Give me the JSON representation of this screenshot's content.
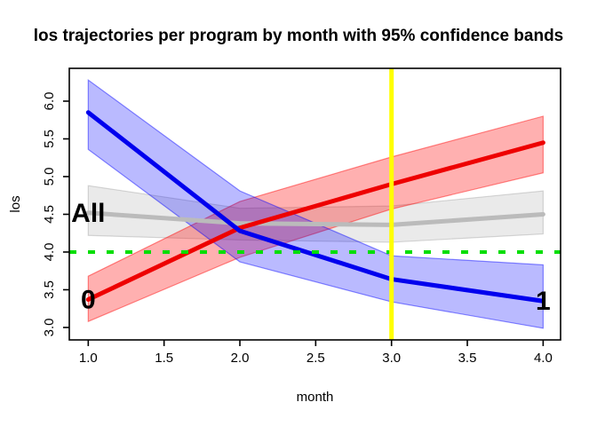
{
  "chart_data": {
    "type": "line",
    "title": "los trajectories per program by month with 95% confidence bands",
    "xlabel": "month",
    "ylabel": "los",
    "x": [
      1,
      2,
      3,
      4
    ],
    "xlim": [
      0.875,
      4.115
    ],
    "ylim": [
      2.835,
      6.435
    ],
    "grid": "off",
    "legend": "none",
    "x_ticks": {
      "values": [
        1.0,
        1.5,
        2.0,
        2.5,
        3.0,
        3.5,
        4.0
      ],
      "labels": [
        "1.0",
        "1.5",
        "2.0",
        "2.5",
        "3.0",
        "3.5",
        "4.0"
      ]
    },
    "y_ticks": {
      "values": [
        3.0,
        3.5,
        4.0,
        4.5,
        5.0,
        5.5,
        6.0
      ],
      "labels": [
        "3.0",
        "3.5",
        "4.0",
        "4.5",
        "5.0",
        "5.5",
        "6.0"
      ]
    },
    "series": [
      {
        "name": "All",
        "label": "All",
        "color": "#BBBBBB",
        "label_color": "#C6C6C6",
        "band_fill": "rgba(128,128,128,0.17)",
        "band_edge": "rgba(128,128,128,0.30)",
        "values": [
          4.52,
          4.38,
          4.36,
          4.5
        ],
        "lower": [
          4.22,
          4.16,
          4.13,
          4.24
        ],
        "upper": [
          4.88,
          4.58,
          4.61,
          4.81
        ],
        "label_x": 1,
        "label_y": 4.52
      },
      {
        "name": "0",
        "label": "0",
        "color": "#EE0000",
        "label_color": "#EE0000",
        "band_fill": "rgba(255,0,0,0.31)",
        "band_edge": "rgba(255,0,0,0.45)",
        "values": [
          3.37,
          4.32,
          4.9,
          5.45
        ],
        "lower": [
          3.08,
          3.93,
          4.57,
          5.05
        ],
        "upper": [
          3.68,
          4.67,
          5.26,
          5.8
        ],
        "label_x": 1,
        "label_y": 3.37
      },
      {
        "name": "1",
        "label": "1",
        "color": "#0000EE",
        "label_color": "#0000EE",
        "band_fill": "rgba(0,0,255,0.27)",
        "band_edge": "rgba(0,0,255,0.45)",
        "values": [
          5.85,
          4.28,
          3.64,
          3.35
        ],
        "lower": [
          5.36,
          3.87,
          3.34,
          2.99
        ],
        "upper": [
          6.28,
          4.81,
          3.95,
          3.83
        ],
        "label_x": 4,
        "label_y": 3.35
      }
    ],
    "reference_lines": {
      "horizontal": {
        "y": 4.0,
        "color": "#00DE00",
        "style": "dashed",
        "dash": "8 13",
        "width": 4
      },
      "vertical": {
        "x": 3.0,
        "color": "#FFFF00",
        "style": "solid",
        "width": 5
      }
    }
  }
}
